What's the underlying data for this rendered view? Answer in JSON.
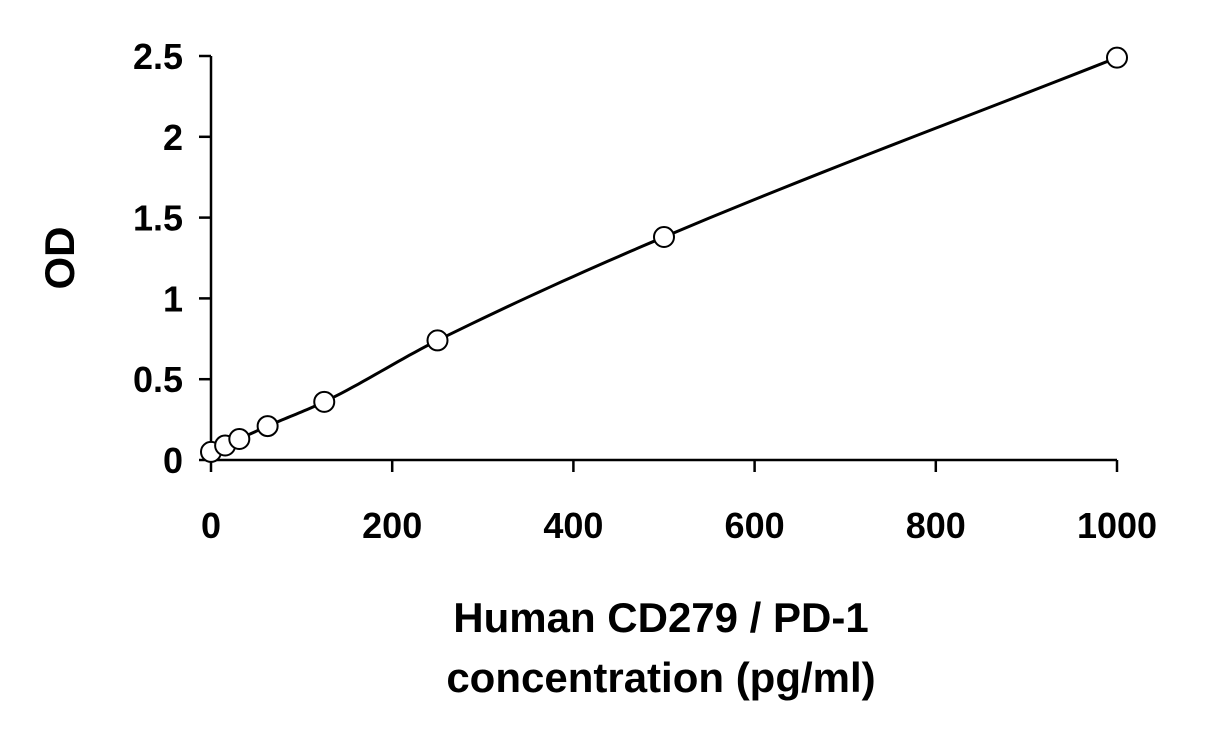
{
  "chart_data": {
    "type": "scatter",
    "title": "",
    "xlabel_lines": [
      "Human CD279 / PD-1",
      "concentration (pg/ml)"
    ],
    "ylabel": "OD",
    "xlim": [
      0,
      1000
    ],
    "ylim": [
      0,
      2.5
    ],
    "xticks": [
      0,
      200,
      400,
      600,
      800,
      1000
    ],
    "xtick_labels": [
      "0",
      "200",
      "400",
      "600",
      "800",
      "1000"
    ],
    "yticks": [
      0,
      0.5,
      1,
      1.5,
      2,
      2.5
    ],
    "ytick_labels": [
      "0",
      "0.5",
      "1",
      "1.5",
      "2",
      "2.5"
    ],
    "grid": false,
    "legend": false,
    "series": [
      {
        "x": [
          0,
          15.6,
          31.25,
          62.5,
          125,
          250,
          500,
          1000
        ],
        "y": [
          0.05,
          0.09,
          0.13,
          0.21,
          0.36,
          0.74,
          1.38,
          2.49
        ],
        "marker": "open-circle",
        "fit_line": true
      }
    ]
  }
}
